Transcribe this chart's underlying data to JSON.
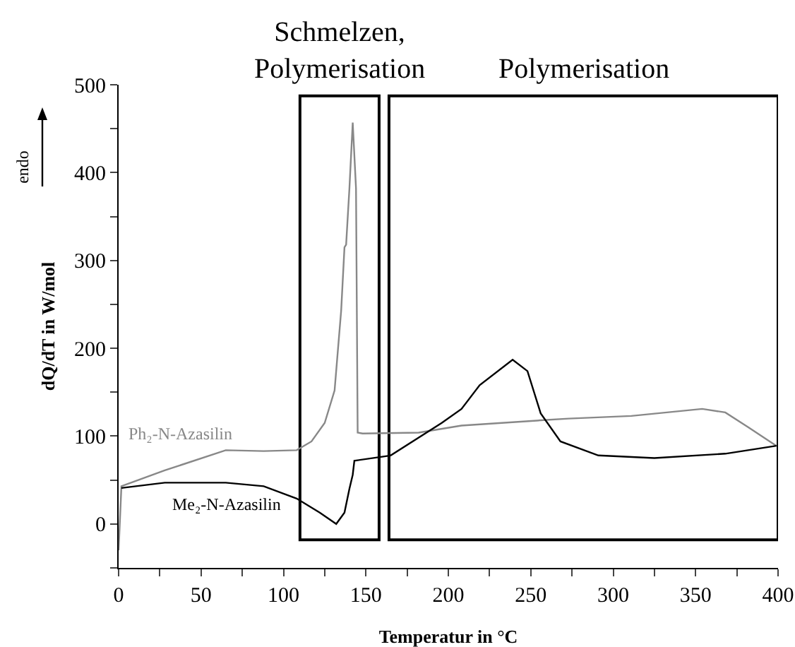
{
  "chart_data": {
    "type": "line",
    "xlabel": "Temperatur in °C",
    "ylabel": "dQ/dT in W/mol",
    "xlim": [
      0,
      400
    ],
    "ylim": [
      -50,
      500
    ],
    "xticks": [
      0,
      {
        "value": 25,
        "label": null
      },
      50,
      {
        "value": 75,
        "label": null
      },
      100,
      {
        "value": 125,
        "label": null
      },
      150,
      {
        "value": 175,
        "label": null
      },
      200,
      {
        "value": 225,
        "label": null
      },
      250,
      {
        "value": 275,
        "label": null
      },
      300,
      {
        "value": 325,
        "label": null
      },
      350,
      {
        "value": 375,
        "label": null
      },
      400
    ],
    "yticks": [
      {
        "value": -50,
        "label": null
      },
      0,
      {
        "value": 50,
        "label": null
      },
      100,
      {
        "value": 150,
        "label": null
      },
      200,
      {
        "value": 250,
        "label": null
      },
      300,
      {
        "value": 350,
        "label": null
      },
      400,
      {
        "value": 450,
        "label": null
      },
      500
    ],
    "grid": false,
    "legend": false,
    "marker": "none",
    "line_style": "solid",
    "annotations": [
      "endo"
    ],
    "bands": [
      {
        "axis": "x",
        "from": 110,
        "to": 158,
        "label": "Schmelzen,\nPolymerisation"
      },
      {
        "axis": "x",
        "from": 164,
        "to": 400,
        "label": "Polymerisation"
      }
    ],
    "series": [
      {
        "name": "Ph₂-N-Azasilin",
        "color": "#888888",
        "x": [
          0,
          1.7,
          28,
          65,
          88,
          108,
          117,
          125,
          131,
          135,
          137,
          138,
          140,
          142,
          144,
          145,
          148,
          182,
          208,
          256,
          273,
          311,
          354,
          368,
          382,
          399
        ],
        "values": [
          -30,
          43,
          61,
          84,
          83,
          84,
          94,
          115,
          152,
          243,
          315,
          318,
          382,
          457,
          382,
          104,
          103,
          104,
          112,
          118,
          120,
          123,
          131,
          127,
          110,
          89
        ]
      },
      {
        "name": "Me₂-N-Azasilin",
        "color": "#000000",
        "x": [
          1.7,
          28,
          65,
          88,
          108,
          122,
          132,
          137,
          140,
          142,
          143,
          165,
          196,
          208,
          219,
          239,
          248,
          256,
          268,
          291,
          325,
          368,
          399
        ],
        "values": [
          41,
          47,
          47,
          43,
          29,
          13,
          0,
          13,
          40,
          56,
          72,
          78,
          115,
          131,
          158,
          187,
          174,
          126,
          94,
          78,
          75,
          80,
          89
        ]
      }
    ]
  }
}
